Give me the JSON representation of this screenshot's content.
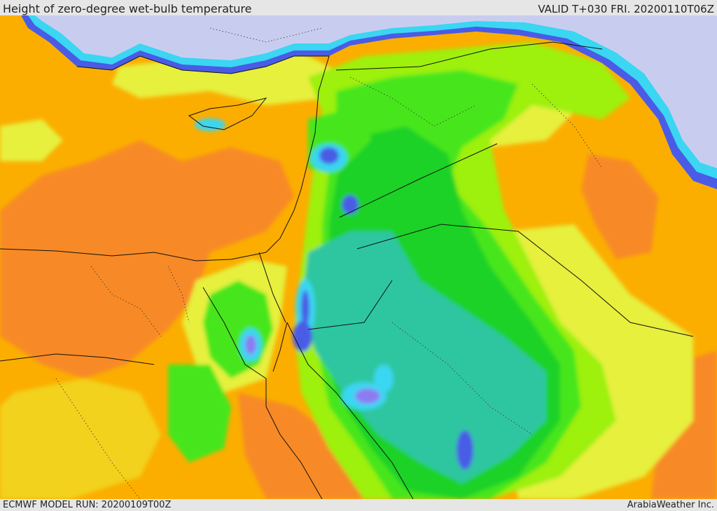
{
  "header": {
    "title": "Height of zero-degree wet-bulb temperature",
    "valid": "VALID T+030 FRI. 20200110T06Z"
  },
  "footer": {
    "model_run": "ECMWF MODEL RUN: 20200109T00Z",
    "credit": "ArabiaWeather Inc."
  },
  "palette": {
    "sea_low": "#c8cdf0",
    "blue": "#4a5be6",
    "violet": "#8c7cf2",
    "cyan": "#3ad6f2",
    "teal": "#2fc6a0",
    "green_dark": "#1ed228",
    "green": "#46e61e",
    "lime": "#9ef00a",
    "yellow": "#e6f03c",
    "yellow_orange": "#f2d21e",
    "orange": "#fbae00",
    "dark_orange": "#f78a28",
    "red_orange": "#f55a14"
  }
}
